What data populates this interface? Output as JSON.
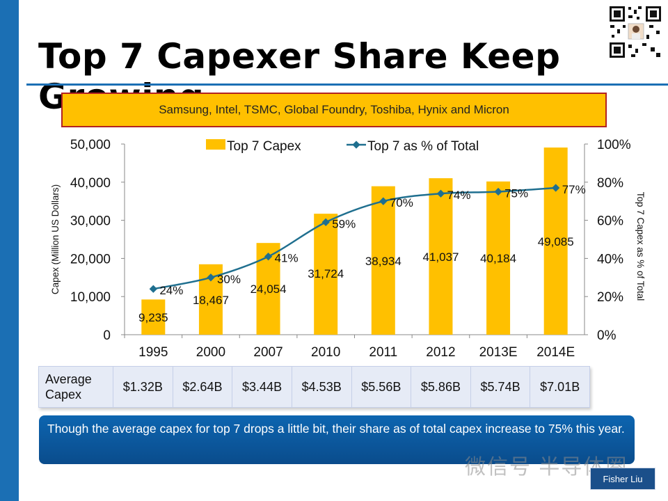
{
  "page": {
    "title": "Top 7 Capexer Share Keep Growing",
    "companies": "Samsung, Intel, TSMC, Global Foundry, Toshiba, Hynix and Micron",
    "note": "Though the average capex for top 7 drops a little bit, their share as of total capex increase to 75% this year.",
    "author": "Fisher Liu",
    "watermark": "微信号 半导体圈",
    "colors": {
      "accent": "#1b6fb4",
      "bar": "#ffc000",
      "line": "#1f6f8f",
      "note_bg": "#0a56a0"
    }
  },
  "table": {
    "header": [
      "Average",
      "Capex"
    ],
    "values": [
      "$1.32B",
      "$2.64B",
      "$3.44B",
      "$4.53B",
      "$5.56B",
      "$5.86B",
      "$5.74B",
      "$7.01B"
    ]
  },
  "chart_data": {
    "type": "bar",
    "categories": [
      "1995",
      "2000",
      "2007",
      "2010",
      "2011",
      "2012",
      "2013E",
      "2014E"
    ],
    "series": [
      {
        "name": "Top 7 Capex",
        "type": "bar",
        "axis": "left",
        "values": [
          9235,
          18467,
          24054,
          31724,
          38934,
          41037,
          40184,
          49085
        ],
        "labels": [
          "9,235",
          "18,467",
          "24,054",
          "31,724",
          "38,934",
          "41,037",
          "40,184",
          "49,085"
        ]
      },
      {
        "name": "Top 7 as % of Total",
        "type": "line",
        "axis": "right",
        "values": [
          24,
          30,
          41,
          59,
          70,
          74,
          75,
          77
        ],
        "labels": [
          "24%",
          "30%",
          "41%",
          "59%",
          "70%",
          "74%",
          "75%",
          "77%"
        ]
      }
    ],
    "ylabel": "Capex (Million US Dollars)",
    "y2label": "Top 7 Capex as % of Total",
    "ylim": [
      0,
      50000
    ],
    "y2lim": [
      0,
      100
    ],
    "yticks": [
      "0",
      "10,000",
      "20,000",
      "30,000",
      "40,000",
      "50,000"
    ],
    "y2ticks": [
      "0%",
      "20%",
      "40%",
      "60%",
      "80%",
      "100%"
    ],
    "legend": "top",
    "grid": false
  }
}
